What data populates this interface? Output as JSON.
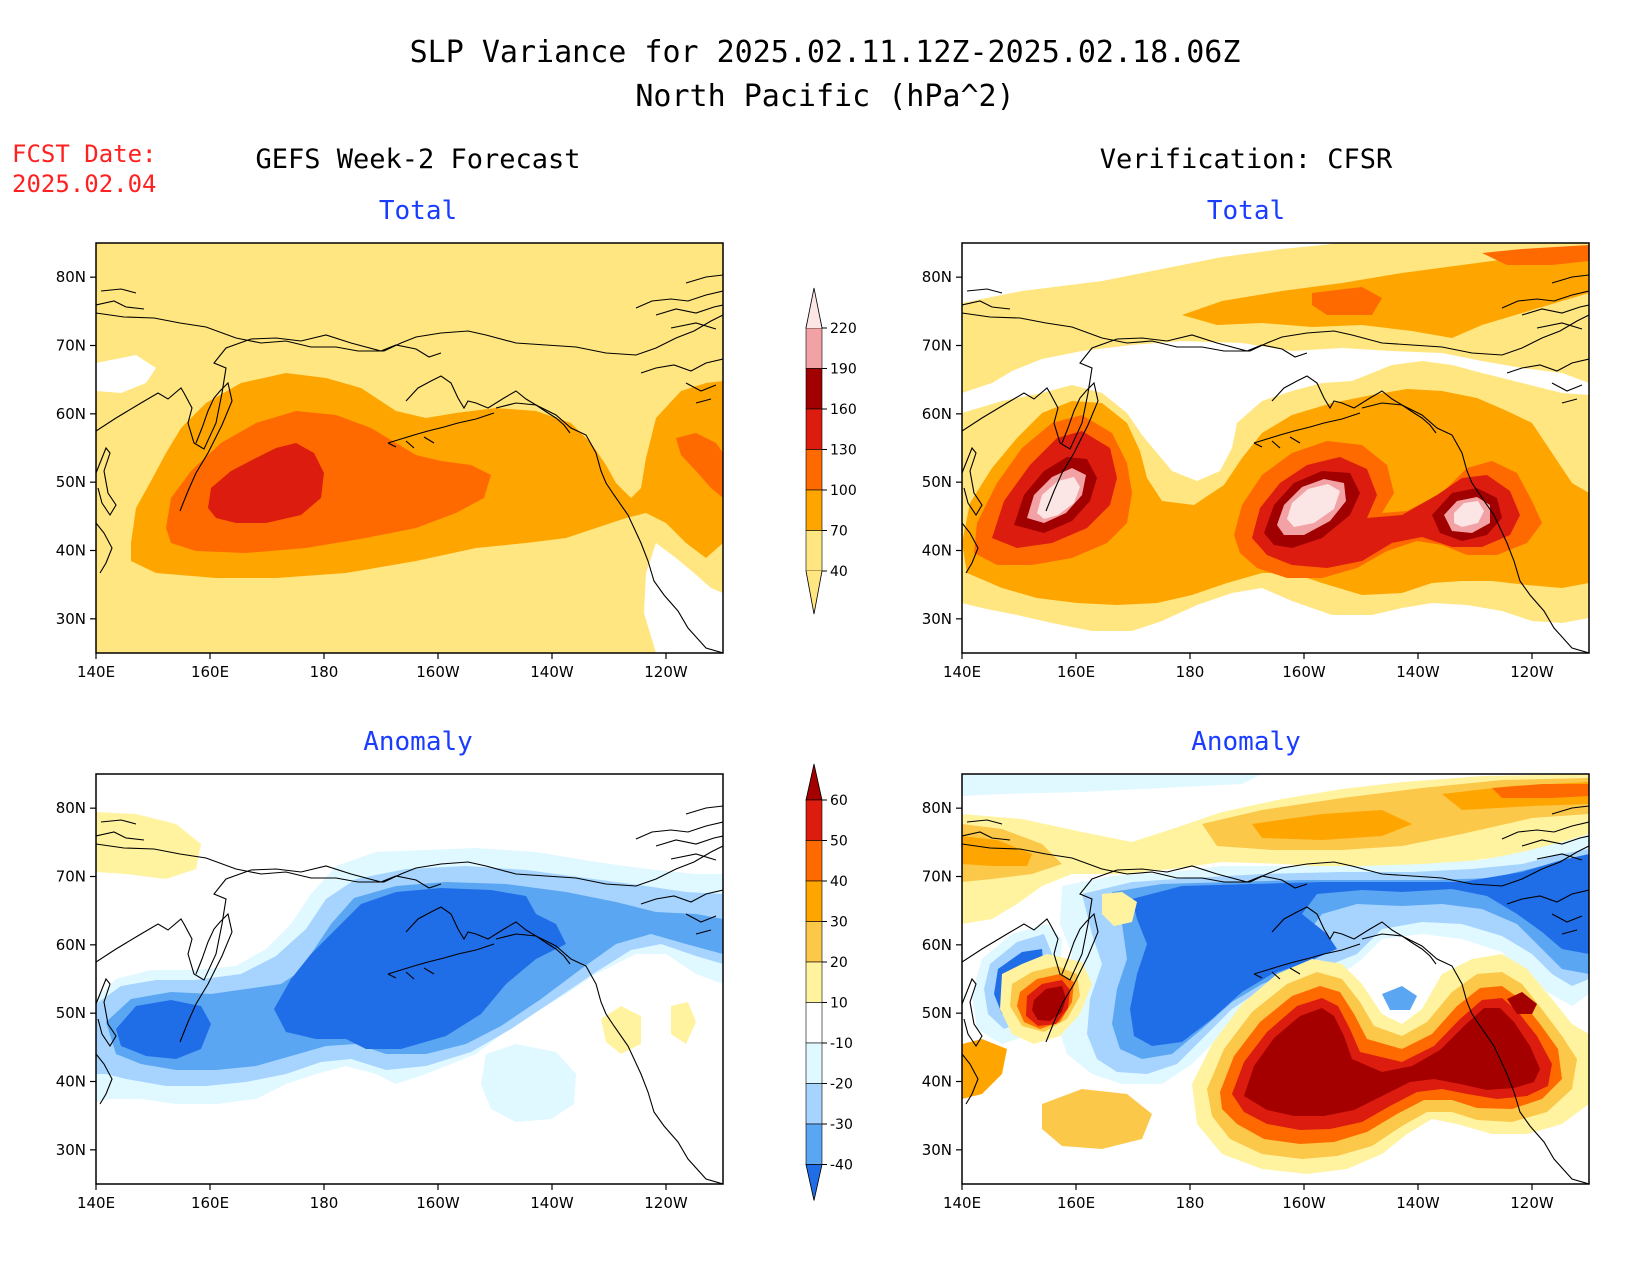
{
  "title": {
    "line1": "SLP Variance for 2025.02.11.12Z-2025.02.18.06Z",
    "line2": "North Pacific (hPa^2)"
  },
  "forecast_date": {
    "label": "FCST Date:",
    "value": "2025.02.04"
  },
  "columns": {
    "left": "GEFS Week-2 Forecast",
    "right": "Verification: CFSR"
  },
  "row_titles": {
    "total": "Total",
    "anomaly": "Anomaly"
  },
  "axes": {
    "x_ticks": [
      "140E",
      "160E",
      "180",
      "160W",
      "140W",
      "120W"
    ],
    "y_ticks": [
      "80N",
      "70N",
      "60N",
      "50N",
      "40N",
      "30N"
    ],
    "lon_range_east_deg": [
      140,
      250
    ],
    "lat_range_deg": [
      25,
      85
    ]
  },
  "colorbars": {
    "total": {
      "levels": [
        "220",
        "190",
        "160",
        "130",
        "100",
        "70",
        "40"
      ],
      "colors": [
        "#fce5e5",
        "#f2a2a5",
        "#a10000",
        "#dc1c0e",
        "#ff6a00",
        "#ffa500",
        "#ffe680"
      ]
    },
    "anomaly": {
      "levels": [
        "60",
        "50",
        "40",
        "30",
        "20",
        "10",
        "-10",
        "-20",
        "-30",
        "-40"
      ],
      "colors": [
        "#a50000",
        "#dc1c0e",
        "#ff6a00",
        "#ffa500",
        "#fbc84a",
        "#fff3a0",
        "#ffffff",
        "#e0f8ff",
        "#a6d4ff",
        "#5aa6f2",
        "#1f6ee8"
      ]
    }
  }
}
